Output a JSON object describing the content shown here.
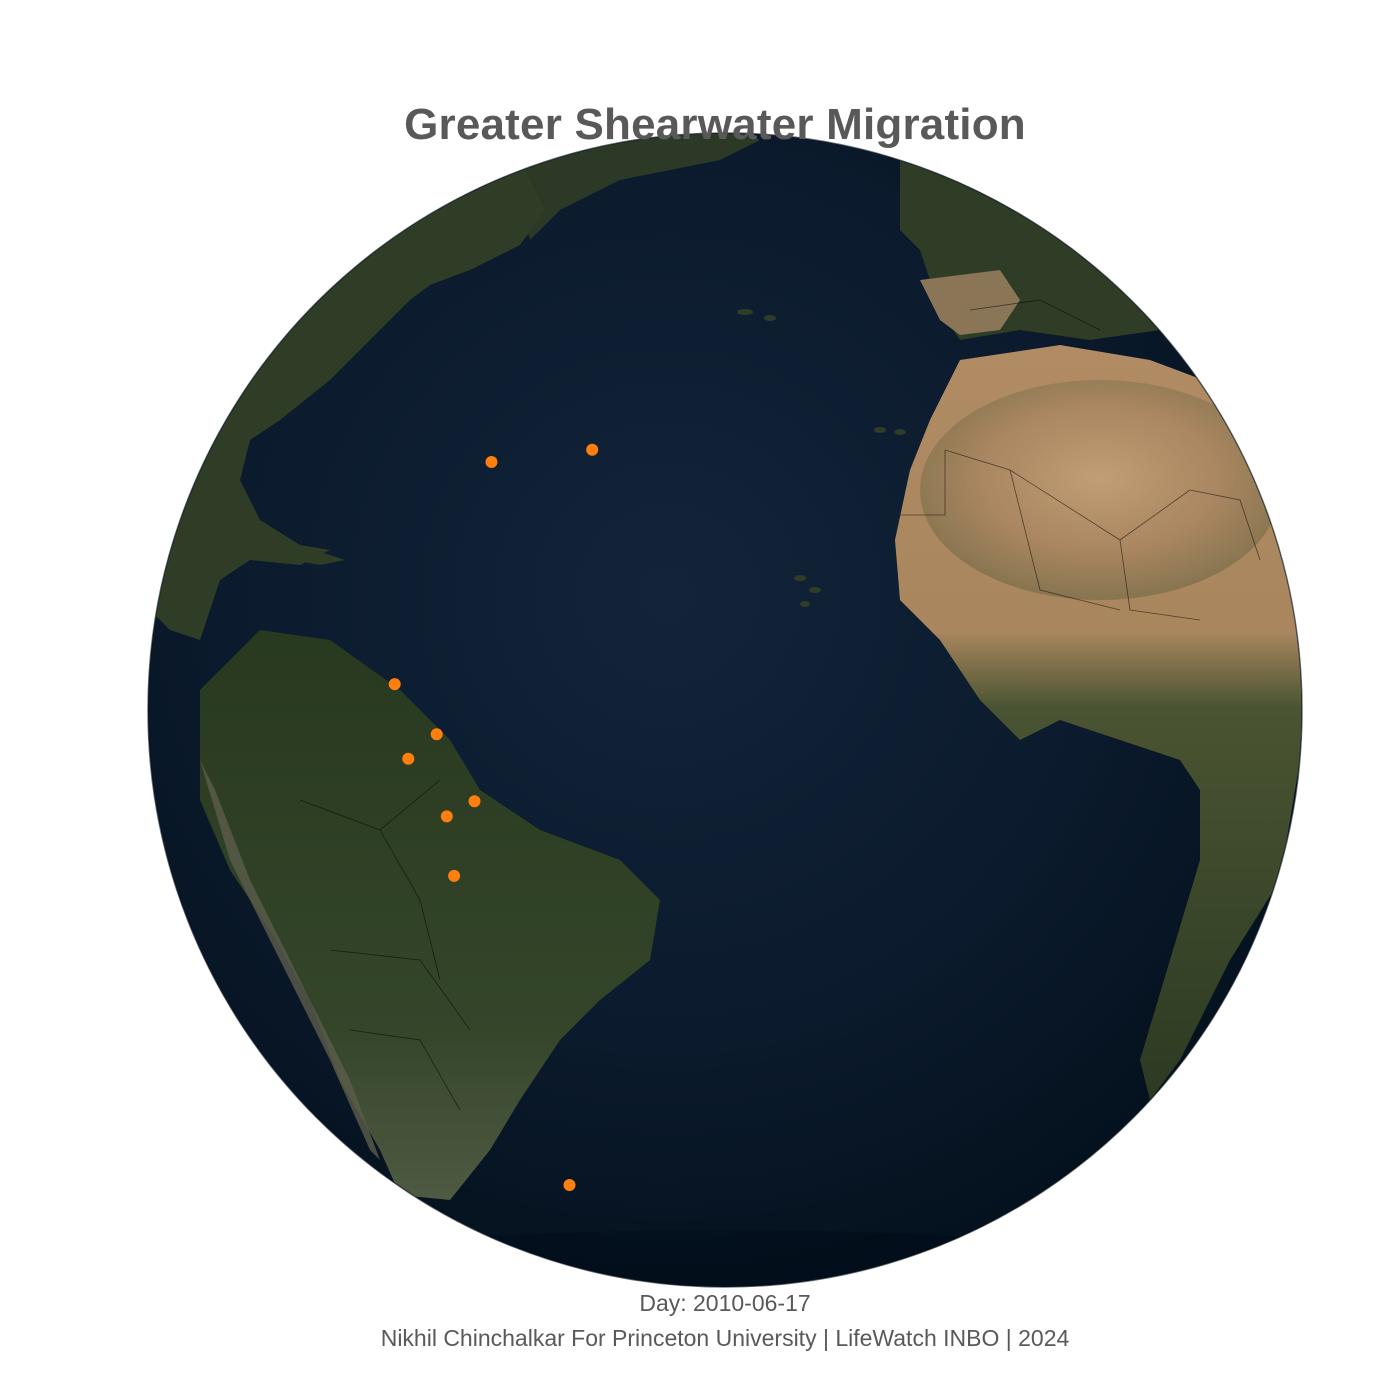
{
  "map": {
    "title": "Greater Shearwater Migration",
    "day_prefix": "Day: ",
    "day": "2010-06-17",
    "credit": "Nikhil Chinchalkar For Princeton University | LifeWatch INBO | 2024",
    "projection": "orthographic",
    "marker_color": "#ff7f0e",
    "ocean_color": "#0b1a2c",
    "land_color": "#2f3d26",
    "desert_color": "#b38c63",
    "border_color": "#000000"
  },
  "chart_data": {
    "type": "scatter",
    "title": "Greater Shearwater Migration",
    "series": [
      {
        "values": [
          {
            "lon": -41,
            "lat": 45
          },
          {
            "lon": -55,
            "lat": 42
          },
          {
            "lon": -59,
            "lat": 18
          },
          {
            "lon": -53,
            "lat": 14
          },
          {
            "lon": -56,
            "lat": 11
          },
          {
            "lon": -48,
            "lat": 8
          },
          {
            "lon": -51,
            "lat": 6
          },
          {
            "lon": -50,
            "lat": 0
          },
          {
            "lon": -42,
            "lat": -38
          }
        ]
      }
    ]
  }
}
